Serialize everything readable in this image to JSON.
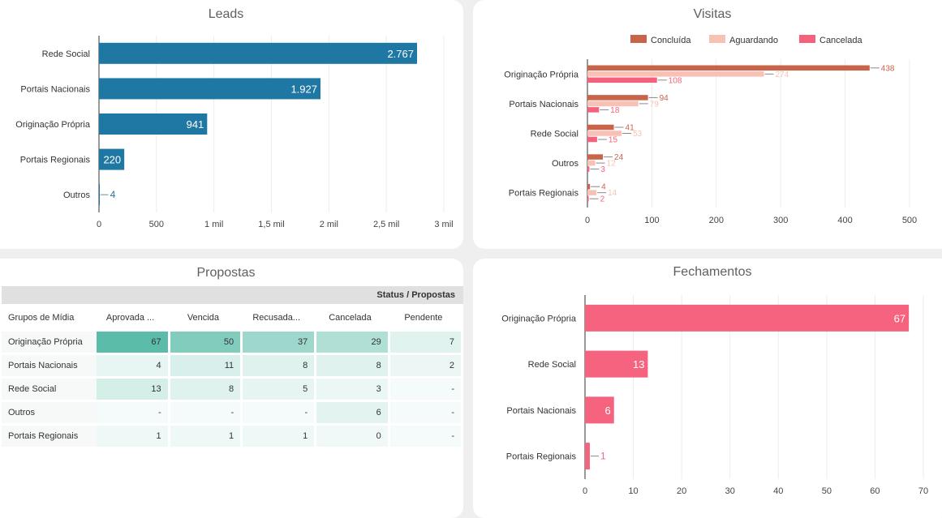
{
  "leads": {
    "title": "Leads",
    "chart_data": {
      "type": "bar",
      "orientation": "horizontal",
      "categories": [
        "Rede Social",
        "Portais Nacionais",
        "Originação Própria",
        "Portais Regionais",
        "Outros"
      ],
      "values": [
        2767,
        1927,
        941,
        220,
        4
      ],
      "value_labels": [
        "2.767",
        "1.927",
        "941",
        "220",
        "4"
      ],
      "xlim": [
        0,
        3000
      ],
      "xticks": [
        0,
        500,
        1000,
        1500,
        2000,
        2500,
        3000
      ],
      "xtick_labels": [
        "0",
        "500",
        "1 mil",
        "1,5 mil",
        "2 mil",
        "2,5 mil",
        "3 mil"
      ],
      "color": "#1f77a4"
    }
  },
  "visitas": {
    "title": "Visitas",
    "chart_data": {
      "type": "bar",
      "orientation": "horizontal",
      "categories": [
        "Originação Própria",
        "Portais Nacionais",
        "Rede Social",
        "Outros",
        "Portais Regionais"
      ],
      "series": [
        {
          "name": "Concluída",
          "color": "#c8644a",
          "values": [
            438,
            94,
            41,
            24,
            4
          ]
        },
        {
          "name": "Aguardando",
          "color": "#f9c1b5",
          "values": [
            274,
            79,
            53,
            12,
            14
          ]
        },
        {
          "name": "Cancelada",
          "color": "#f5607c",
          "values": [
            108,
            18,
            15,
            3,
            2
          ]
        }
      ],
      "xlim": [
        0,
        500
      ],
      "xticks": [
        0,
        100,
        200,
        300,
        400,
        500
      ],
      "xtick_labels": [
        "0",
        "100",
        "200",
        "300",
        "400",
        "500"
      ],
      "legend": "top-right"
    }
  },
  "propostas": {
    "title": "Propostas",
    "status_header": "Status / Propostas",
    "columns": [
      "Grupos de Mídia",
      "Aprovada ...",
      "Vencida",
      "Recusada...",
      "Cancelada",
      "Pendente"
    ],
    "rows": [
      {
        "label": "Originação Própria",
        "cells": [
          "67",
          "50",
          "37",
          "29",
          "7"
        ]
      },
      {
        "label": "Portais Nacionais",
        "cells": [
          "4",
          "11",
          "8",
          "8",
          "2"
        ]
      },
      {
        "label": "Rede Social",
        "cells": [
          "13",
          "8",
          "5",
          "3",
          "-"
        ]
      },
      {
        "label": "Outros",
        "cells": [
          "-",
          "-",
          "-",
          "6",
          "-"
        ]
      },
      {
        "label": "Portais Regionais",
        "cells": [
          "1",
          "1",
          "1",
          "0",
          "-"
        ]
      }
    ],
    "heat_color": "#4fb8a2"
  },
  "fechamentos": {
    "title": "Fechamentos",
    "chart_data": {
      "type": "bar",
      "orientation": "horizontal",
      "categories": [
        "Originação Própria",
        "Rede Social",
        "Portais Nacionais",
        "Portais Regionais"
      ],
      "values": [
        67,
        13,
        6,
        1
      ],
      "value_labels": [
        "67",
        "13",
        "6",
        "1"
      ],
      "xlim": [
        0,
        70
      ],
      "xticks": [
        0,
        10,
        20,
        30,
        40,
        50,
        60,
        70
      ],
      "xtick_labels": [
        "0",
        "10",
        "20",
        "30",
        "40",
        "50",
        "60",
        "70"
      ],
      "color": "#f5637f"
    }
  }
}
